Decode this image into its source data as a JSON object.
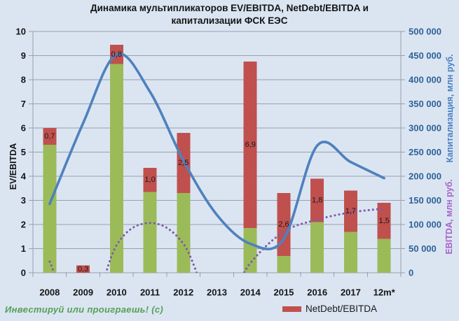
{
  "title": {
    "line1": "Динамика мультипликаторов EV/EBITDA, NetDebt/EBITDA и",
    "line2": "капитализации ФСК ЕЭС"
  },
  "watermark": "Инвестируй или проиграешь! (с)",
  "legend": {
    "items": [
      {
        "label": "NetDebt/EBITDA",
        "color": "#c0504d"
      }
    ]
  },
  "axes": {
    "left_title": "EV/EBITDA",
    "right_title_capitalization": "Капитализация, млн руб.",
    "right_title_ebitda": "EBITDA, млн руб."
  },
  "colors": {
    "background": "#dbe5f2",
    "gridline": "#97a0aa",
    "bar_green": "#9bbb59",
    "bar_red": "#c0504d",
    "line_blue": "#4f81bd",
    "line_purple": "#7d5ca6",
    "right_tick_text": "#2e6297",
    "left_tick_text": "#141414"
  },
  "chart_data": {
    "type": "combo (stacked bar + smoothed lines)",
    "categories": [
      "2008",
      "2009",
      "2010",
      "2011",
      "2012",
      "2013",
      "2014",
      "2015",
      "2016",
      "2017",
      "12m*"
    ],
    "left_axis": {
      "title": "EV/EBITDA",
      "min": 0,
      "max": 10,
      "step": 1
    },
    "right_axis": {
      "title": "Капитализация / EBITDA, млн руб.",
      "min": 0,
      "max": 500000,
      "step": 50000
    },
    "grid": true,
    "legend_position": "bottom-right",
    "series": [
      {
        "name": "EV/EBITDA (green part of stacked bar, EV/EBITDA minus NetDebt/EBITDA)",
        "type": "bar",
        "stacked": true,
        "axis": "left",
        "color": "#9bbb59",
        "values": [
          5.3,
          0,
          8.65,
          3.35,
          3.3,
          0,
          1.85,
          0.7,
          2.1,
          1.7,
          1.4
        ]
      },
      {
        "name": "NetDebt/EBITDA",
        "type": "bar",
        "stacked": true,
        "axis": "left",
        "color": "#c0504d",
        "values": [
          0.7,
          0.3,
          0.8,
          1.0,
          2.5,
          0,
          6.9,
          2.6,
          1.8,
          1.7,
          1.5
        ],
        "labels": [
          "0,7",
          "0,3",
          "0,8",
          "1,0",
          "2,5",
          "",
          "6,9",
          "2,6",
          "1,8",
          "1,7",
          "1,5"
        ]
      },
      {
        "name": "Капитализация, млн руб.",
        "type": "line",
        "smooth": true,
        "axis": "right",
        "color": "#4f81bd",
        "values": [
          142500,
          310000,
          452500,
          375000,
          232500,
          120000,
          60000,
          70000,
          263500,
          229500,
          196000
        ]
      },
      {
        "name": "EBITDA, млн руб.",
        "type": "line",
        "smooth": true,
        "dotted": true,
        "axis": "right",
        "color": "#7d5ca6",
        "note": "negative values are clipped below the zero axis (line disappears in 2009 and 2013)",
        "values": [
          23000,
          -120000,
          57000,
          103000,
          60000,
          -80000,
          20000,
          85000,
          110000,
          125000,
          133000
        ]
      }
    ]
  }
}
